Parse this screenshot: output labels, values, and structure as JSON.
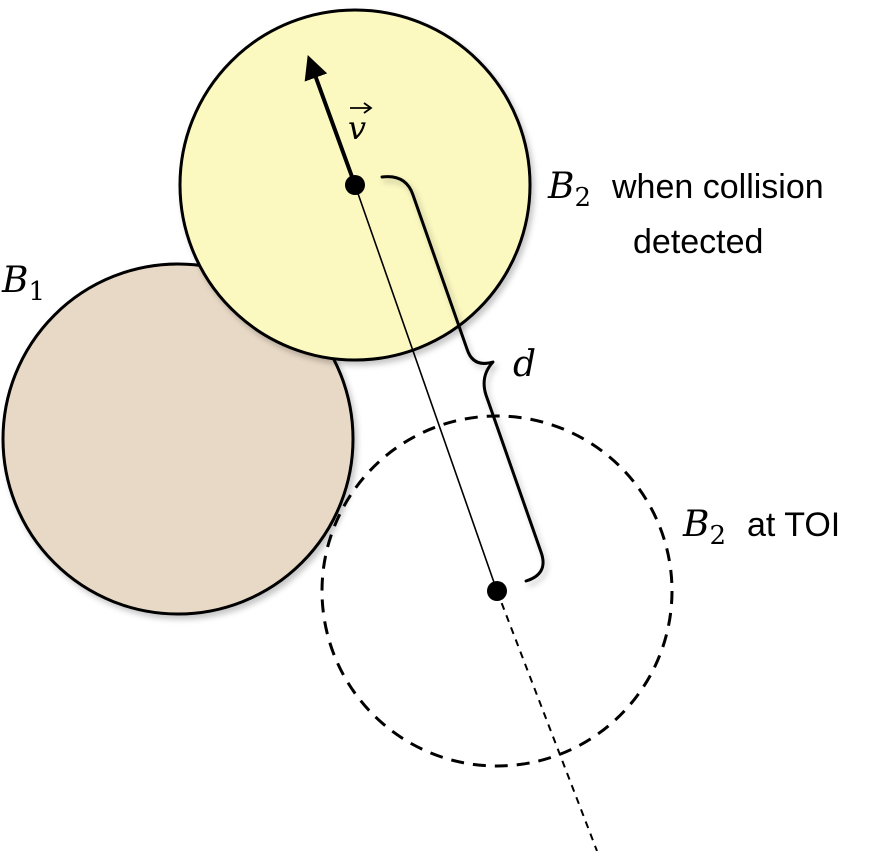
{
  "labels": {
    "b1_symbol": "B",
    "b1_subscript": "1",
    "b2_detected_symbol": "B",
    "b2_detected_subscript": "2",
    "b2_detected_text_line1": "when collision",
    "b2_detected_text_line2": "detected",
    "b2_toi_symbol": "B",
    "b2_toi_subscript": "2",
    "b2_toi_text": "at TOI",
    "distance_symbol": "d",
    "velocity_symbol": "v"
  },
  "colors": {
    "b1_fill": "#e8d9c6",
    "b2_detected_fill": "#fbf8c0",
    "stroke": "#000000"
  },
  "icons": {
    "velocity_arrow": "arrow-up-left-icon",
    "distance_brace": "curly-brace-icon"
  }
}
